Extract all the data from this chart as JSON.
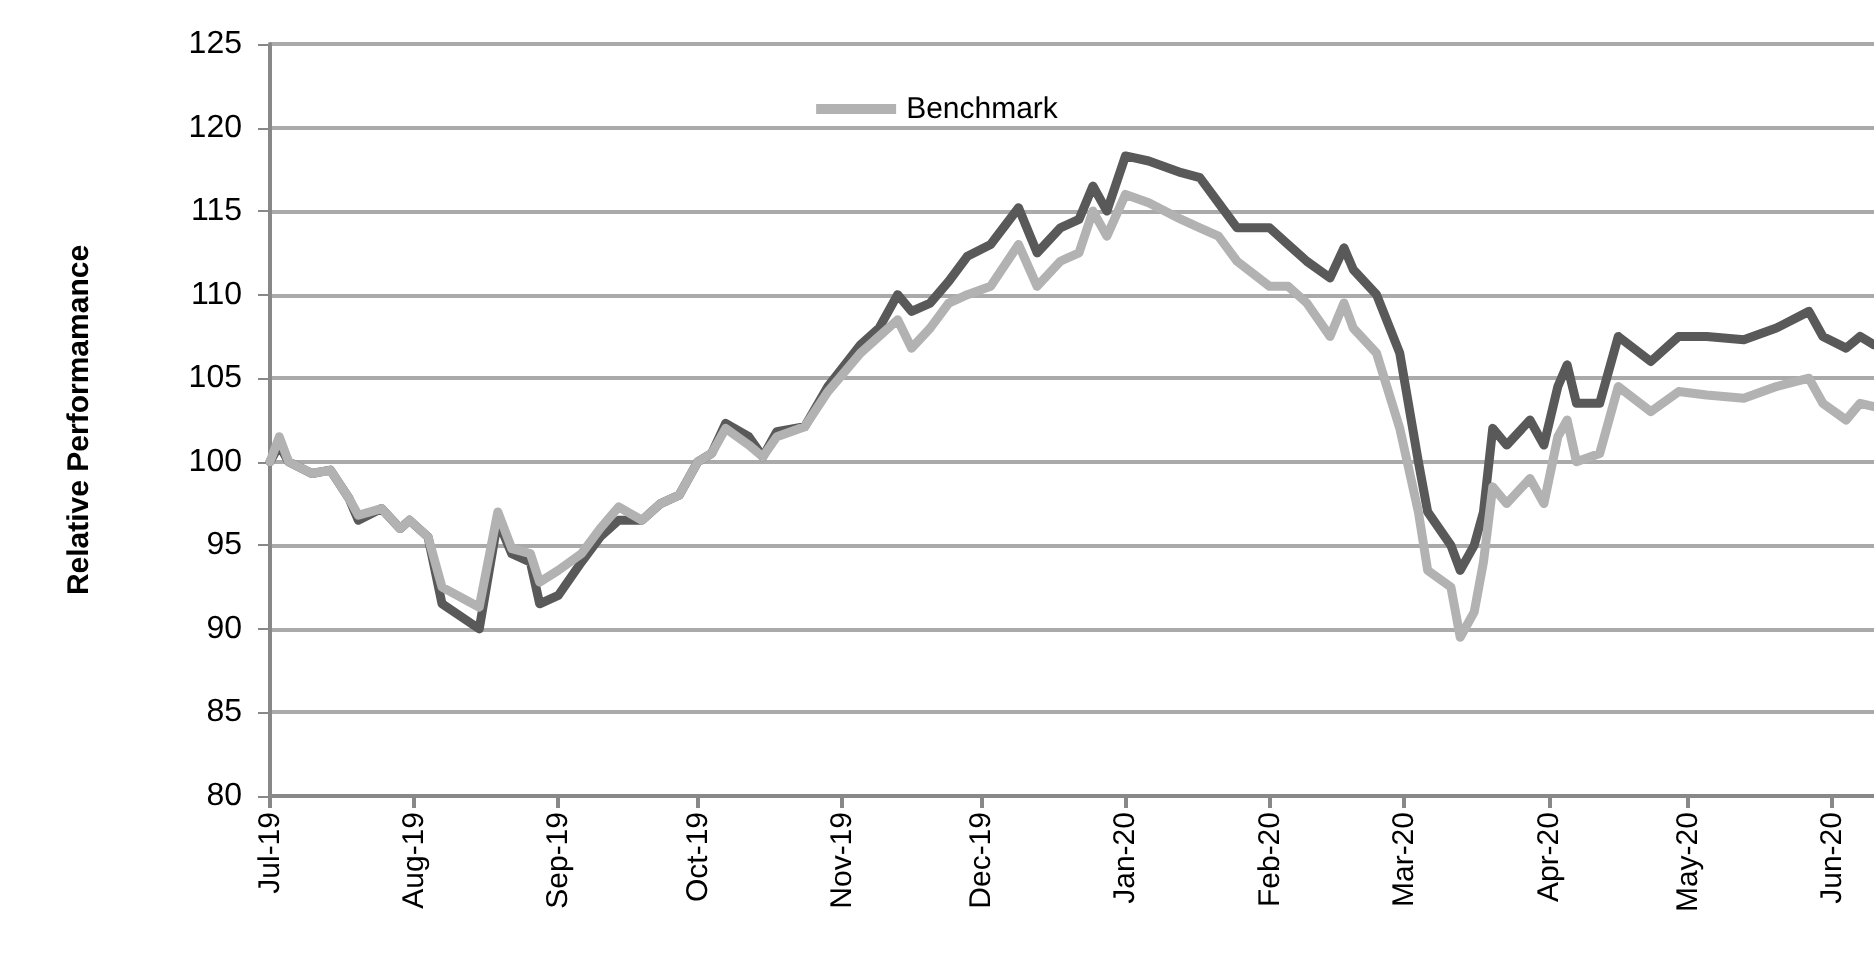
{
  "chart_data": {
    "type": "line",
    "ylabel": "Relative Performamance",
    "x": [
      "2019-07-01",
      "2019-07-03",
      "2019-07-05",
      "2019-07-10",
      "2019-07-14",
      "2019-07-18",
      "2019-07-20",
      "2019-07-25",
      "2019-07-29",
      "2019-07-31",
      "2019-08-04",
      "2019-08-07",
      "2019-08-15",
      "2019-08-19",
      "2019-08-22",
      "2019-08-26",
      "2019-08-28",
      "2019-09-01",
      "2019-09-06",
      "2019-09-10",
      "2019-09-14",
      "2019-09-19",
      "2019-09-23",
      "2019-09-27",
      "2019-10-01",
      "2019-10-04",
      "2019-10-07",
      "2019-10-12",
      "2019-10-15",
      "2019-10-18",
      "2019-10-24",
      "2019-10-29",
      "2019-11-05",
      "2019-11-09",
      "2019-11-13",
      "2019-11-16",
      "2019-11-20",
      "2019-11-24",
      "2019-11-28",
      "2019-12-03",
      "2019-12-09",
      "2019-12-13",
      "2019-12-18",
      "2019-12-22",
      "2019-12-25",
      "2019-12-28",
      "2020-01-01",
      "2020-01-06",
      "2020-01-13",
      "2020-01-17",
      "2020-01-21",
      "2020-01-25",
      "2020-02-01",
      "2020-02-05",
      "2020-02-09",
      "2020-02-14",
      "2020-02-17",
      "2020-02-19",
      "2020-02-24",
      "2020-02-29",
      "2020-03-04",
      "2020-03-06",
      "2020-03-11",
      "2020-03-13",
      "2020-03-16",
      "2020-03-18",
      "2020-03-20",
      "2020-03-23",
      "2020-03-28",
      "2020-03-31",
      "2020-04-03",
      "2020-04-05",
      "2020-04-07",
      "2020-04-12",
      "2020-04-16",
      "2020-04-23",
      "2020-04-29",
      "2020-05-05",
      "2020-05-13",
      "2020-05-20",
      "2020-05-27",
      "2020-05-30",
      "2020-06-04",
      "2020-06-07",
      "2020-06-10"
    ],
    "series": [
      {
        "color": "#595959",
        "values": [
          100,
          101,
          100,
          99.3,
          99.5,
          97.8,
          96.5,
          97.2,
          96,
          96.5,
          95.5,
          91.5,
          90,
          96.5,
          94.5,
          94,
          91.5,
          92,
          94,
          95.5,
          96.5,
          96.5,
          97.5,
          98,
          100,
          100.5,
          102.3,
          101.5,
          100.3,
          101.8,
          102.1,
          104.5,
          107,
          108,
          110,
          109,
          109.5,
          110.8,
          112.3,
          113,
          115.2,
          112.5,
          114,
          114.5,
          116.5,
          115,
          118.3,
          118,
          117.3,
          117,
          115.5,
          114,
          114,
          113,
          112,
          111,
          112.8,
          111.5,
          110,
          106.5,
          100,
          97,
          95,
          93.5,
          95,
          97,
          102,
          101,
          102.5,
          101,
          104.5,
          105.8,
          103.5,
          103.5,
          107.5,
          106,
          107.5,
          107.5,
          107.3,
          108,
          109,
          107.5,
          106.8,
          107.5,
          107
        ]
      },
      {
        "name": "Benchmark",
        "color": "#b2b2b2",
        "values": [
          100,
          101.5,
          100,
          99.3,
          99.5,
          97.8,
          96.8,
          97.2,
          96,
          96.5,
          95.5,
          92.5,
          91.3,
          97,
          94.8,
          94.5,
          92.8,
          93.5,
          94.5,
          96,
          97.3,
          96.5,
          97.5,
          98,
          100,
          100.5,
          102,
          101,
          100.3,
          101.5,
          102.1,
          104.2,
          106.5,
          107.5,
          108.5,
          106.8,
          108,
          109.5,
          110,
          110.5,
          113,
          110.5,
          112,
          112.5,
          115,
          113.5,
          116,
          115.5,
          114.5,
          114,
          113.5,
          112,
          110.5,
          110.5,
          109.5,
          107.5,
          109.5,
          108,
          106.5,
          102,
          97,
          93.5,
          92.5,
          89.5,
          91,
          94,
          98.5,
          97.5,
          99,
          97.5,
          101.5,
          102.5,
          100,
          100.5,
          104.5,
          103,
          104.2,
          104,
          103.8,
          104.5,
          105,
          103.5,
          102.5,
          103.5,
          103.3
        ]
      }
    ],
    "xlim": [
      "2019-07-01",
      "2020-06-10"
    ],
    "xticks": [
      {
        "value": "2019-07-01",
        "label": "Jul-19"
      },
      {
        "value": "2019-08-01",
        "label": "Aug-19"
      },
      {
        "value": "2019-09-01",
        "label": "Sep-19"
      },
      {
        "value": "2019-10-01",
        "label": "Oct-19"
      },
      {
        "value": "2019-11-01",
        "label": "Nov-19"
      },
      {
        "value": "2019-12-01",
        "label": "Dec-19"
      },
      {
        "value": "2020-01-01",
        "label": "Jan-20"
      },
      {
        "value": "2020-02-01",
        "label": "Feb-20"
      },
      {
        "value": "2020-03-01",
        "label": "Mar-20"
      },
      {
        "value": "2020-04-01",
        "label": "Apr-20"
      },
      {
        "value": "2020-05-01",
        "label": "May-20"
      },
      {
        "value": "2020-06-01",
        "label": "Jun-20"
      }
    ],
    "ylim": [
      80,
      125
    ],
    "yticks": [
      80,
      85,
      90,
      95,
      100,
      105,
      110,
      115,
      120,
      125
    ],
    "grid": "y",
    "legend": "top",
    "marker": "none",
    "line_style": "solid"
  }
}
